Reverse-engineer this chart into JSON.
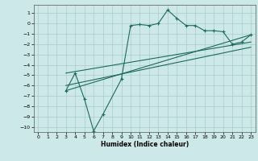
{
  "xlabel": "Humidex (Indice chaleur)",
  "bg_color": "#cce8e8",
  "line_color": "#1a6b5a",
  "grid_color": "#aacccc",
  "xlim": [
    -0.5,
    23.5
  ],
  "ylim": [
    -10.5,
    1.8
  ],
  "yticks": [
    1,
    0,
    -1,
    -2,
    -3,
    -4,
    -5,
    -6,
    -7,
    -8,
    -9,
    -10
  ],
  "xticks": [
    0,
    1,
    2,
    3,
    4,
    5,
    6,
    7,
    8,
    9,
    10,
    11,
    12,
    13,
    14,
    15,
    16,
    17,
    18,
    19,
    20,
    21,
    22,
    23
  ],
  "zigzag_x": [
    3,
    4,
    5,
    6,
    7,
    9,
    10,
    11,
    12,
    13,
    14,
    15,
    16,
    17,
    18,
    19,
    20,
    21,
    22,
    23
  ],
  "zigzag_y": [
    -6.5,
    -4.8,
    -7.3,
    -10.4,
    -8.8,
    -5.4,
    -0.2,
    -0.1,
    -0.2,
    -0.0,
    1.3,
    0.5,
    -0.2,
    -0.2,
    -0.7,
    -0.7,
    -0.8,
    -2.0,
    -1.8,
    -1.1
  ],
  "line1_x": [
    3,
    23
  ],
  "line1_y": [
    -6.5,
    -1.1
  ],
  "line2_x": [
    3,
    23
  ],
  "line2_y": [
    -4.8,
    -1.8
  ],
  "line3_x": [
    3,
    23
  ],
  "line3_y": [
    -6.0,
    -2.3
  ]
}
